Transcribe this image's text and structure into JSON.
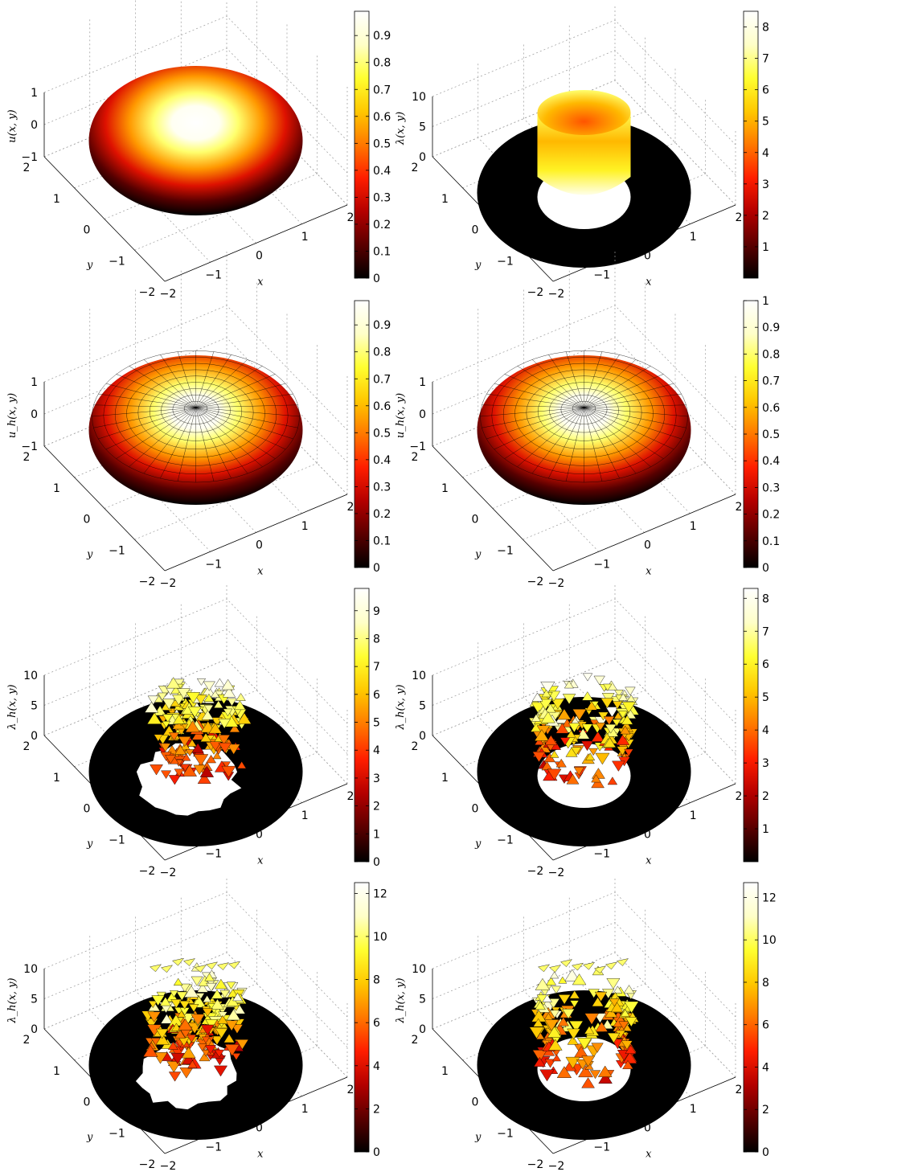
{
  "colormap": [
    "#000000",
    "#5a0000",
    "#b40000",
    "#ff1e00",
    "#ff7800",
    "#ffc800",
    "#ffff30",
    "#ffffc8",
    "#ffffff"
  ],
  "chart_data": [
    {
      "type": "surface",
      "panel": "row1-left",
      "zlabel": "u(x, y)",
      "xlabel": "x",
      "ylabel": "y",
      "x_ticks": [
        "−2",
        "−1",
        "0",
        "1",
        "2"
      ],
      "y_ticks": [
        "−2",
        "−1",
        "0",
        "1",
        "2"
      ],
      "z_ticks": [
        "−1",
        "0",
        "1"
      ],
      "colorbar_ticks": [
        "0",
        "0.1",
        "0.2",
        "0.3",
        "0.4",
        "0.5",
        "0.6",
        "0.7",
        "0.8",
        "0.9"
      ],
      "cmax": 0.99,
      "mesh": false,
      "shape": "dome"
    },
    {
      "type": "surface",
      "panel": "row1-right",
      "zlabel": "λ(x, y)",
      "xlabel": "x",
      "ylabel": "y",
      "x_ticks": [
        "−2",
        "−1",
        "0",
        "1",
        "2"
      ],
      "y_ticks": [
        "−2",
        "−1",
        "0",
        "1",
        "2"
      ],
      "z_ticks": [
        "0",
        "5",
        "10"
      ],
      "colorbar_ticks": [
        "1",
        "2",
        "3",
        "4",
        "5",
        "6",
        "7",
        "8"
      ],
      "cmax": 8.5,
      "mesh": false,
      "shape": "cup"
    },
    {
      "type": "surface",
      "panel": "row2-left",
      "zlabel": "u_h(x, y)",
      "xlabel": "x",
      "ylabel": "y",
      "x_ticks": [
        "−2",
        "−1",
        "0",
        "1",
        "2"
      ],
      "y_ticks": [
        "−2",
        "−1",
        "0",
        "1",
        "2"
      ],
      "z_ticks": [
        "−1",
        "0",
        "1"
      ],
      "colorbar_ticks": [
        "0",
        "0.1",
        "0.2",
        "0.3",
        "0.4",
        "0.5",
        "0.6",
        "0.7",
        "0.8",
        "0.9"
      ],
      "cmax": 0.99,
      "mesh": true,
      "shape": "dome"
    },
    {
      "type": "surface",
      "panel": "row2-right",
      "zlabel": "u_h(x, y)",
      "xlabel": "x",
      "ylabel": "y",
      "x_ticks": [
        "−2",
        "−1",
        "0",
        "1",
        "2"
      ],
      "y_ticks": [
        "−2",
        "−1",
        "0",
        "1",
        "2"
      ],
      "z_ticks": [
        "−1",
        "0",
        "1"
      ],
      "colorbar_ticks": [
        "0",
        "0.1",
        "0.2",
        "0.3",
        "0.4",
        "0.5",
        "0.6",
        "0.7",
        "0.8",
        "0.9",
        "1"
      ],
      "cmax": 1.0,
      "mesh": true,
      "shape": "dome"
    },
    {
      "type": "surface",
      "panel": "row3-left",
      "zlabel": "λ_h(x, y)",
      "xlabel": "x",
      "ylabel": "y",
      "x_ticks": [
        "−2",
        "−1",
        "0",
        "1",
        "2"
      ],
      "y_ticks": [
        "−2",
        "−1",
        "0",
        "1",
        "2"
      ],
      "z_ticks": [
        "0",
        "5",
        "10"
      ],
      "colorbar_ticks": [
        "0",
        "1",
        "2",
        "3",
        "4",
        "5",
        "6",
        "7",
        "8",
        "9"
      ],
      "cmax": 9.8,
      "mesh": true,
      "shape": "scatter-ragged"
    },
    {
      "type": "surface",
      "panel": "row3-right",
      "zlabel": "λ_h(x, y)",
      "xlabel": "x",
      "ylabel": "y",
      "x_ticks": [
        "−2",
        "−1",
        "0",
        "1",
        "2"
      ],
      "y_ticks": [
        "−2",
        "−1",
        "0",
        "1",
        "2"
      ],
      "z_ticks": [
        "0",
        "5",
        "10"
      ],
      "colorbar_ticks": [
        "1",
        "2",
        "3",
        "4",
        "5",
        "6",
        "7",
        "8"
      ],
      "cmax": 8.3,
      "mesh": true,
      "shape": "scatter-cup"
    },
    {
      "type": "surface",
      "panel": "row4-left",
      "zlabel": "λ_h(x, y)",
      "xlabel": "x",
      "ylabel": "y",
      "x_ticks": [
        "−2",
        "−1",
        "0",
        "1",
        "2"
      ],
      "y_ticks": [
        "−2",
        "−1",
        "0",
        "1",
        "2"
      ],
      "z_ticks": [
        "0",
        "5",
        "10"
      ],
      "colorbar_ticks": [
        "0",
        "2",
        "4",
        "6",
        "8",
        "10",
        "12"
      ],
      "cmax": 12.5,
      "mesh": true,
      "shape": "scatter-ragged"
    },
    {
      "type": "surface",
      "panel": "row4-right",
      "zlabel": "λ_h(x, y)",
      "xlabel": "x",
      "ylabel": "y",
      "x_ticks": [
        "−2",
        "−1",
        "0",
        "1",
        "2"
      ],
      "y_ticks": [
        "−2",
        "−1",
        "0",
        "1",
        "2"
      ],
      "z_ticks": [
        "0",
        "5",
        "10"
      ],
      "colorbar_ticks": [
        "0",
        "2",
        "4",
        "6",
        "8",
        "10",
        "12"
      ],
      "cmax": 12.7,
      "mesh": true,
      "shape": "scatter-cup"
    }
  ]
}
